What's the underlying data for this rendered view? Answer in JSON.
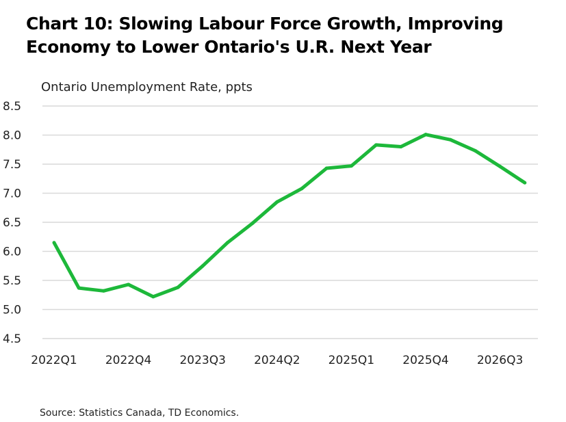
{
  "header": {
    "title_line1": "Chart 10: Slowing Labour Force Growth, Improving",
    "title_line2": "Economy to Lower Ontario's U.R. Next Year"
  },
  "footer": {
    "source": "Source:  Statistics Canada, TD Economics."
  },
  "chart_data": {
    "type": "line",
    "ylabel": "Ontario Unemployment Rate, ppts",
    "xlabel": "",
    "ylim": [
      4.5,
      8.5
    ],
    "yticks": [
      "4.5",
      "5.0",
      "5.5",
      "6.0",
      "6.5",
      "7.0",
      "7.5",
      "8.0",
      "8.5"
    ],
    "grid": true,
    "legend": "none",
    "colors": {
      "line": "#1db83a",
      "grid": "#d9d9d9"
    },
    "x": [
      "2022Q1",
      "2022Q2",
      "2022Q3",
      "2022Q4",
      "2023Q1",
      "2023Q2",
      "2023Q3",
      "2023Q4",
      "2024Q1",
      "2024Q2",
      "2024Q3",
      "2024Q4",
      "2025Q1",
      "2025Q2",
      "2025Q3",
      "2025Q4",
      "2026Q1",
      "2026Q2",
      "2026Q3",
      "2026Q4"
    ],
    "xtick_labels": [
      "2022Q1",
      "2022Q4",
      "2023Q3",
      "2024Q2",
      "2025Q1",
      "2025Q4",
      "2026Q3"
    ],
    "series": [
      {
        "values": [
          6.15,
          5.37,
          5.32,
          5.43,
          5.22,
          5.38,
          5.75,
          6.15,
          6.48,
          6.85,
          7.08,
          7.43,
          7.47,
          7.83,
          7.8,
          8.01,
          7.92,
          7.73,
          7.46,
          7.18
        ]
      }
    ]
  }
}
